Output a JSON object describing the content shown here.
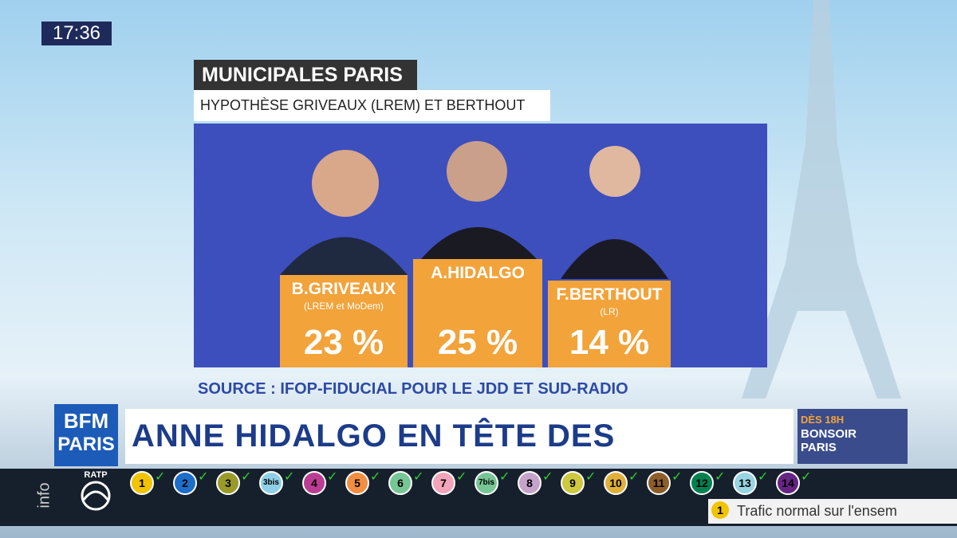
{
  "clock": "17:36",
  "panel": {
    "title": "MUNICIPALES PARIS",
    "subtitle": "HYPOTHÈSE GRIVEAUX (LREM) ET BERTHOUT (LR)",
    "candidates": [
      {
        "name": "B.GRIVEAUX",
        "party": "(LREM et MoDem)",
        "score": "23 %"
      },
      {
        "name": "A.HIDALGO",
        "score": "25 %"
      },
      {
        "name": "F.BERTHOUT",
        "party": "(LR)",
        "score": "14 %"
      }
    ],
    "source": "SOURCE : IFOP-FIDUCIAL POUR LE JDD ET SUD-RADIO"
  },
  "ticker": {
    "logo": "BFM",
    "logo_city": "PARIS",
    "headline": "ANNE HIDALGO EN TÊTE DES SONDAGES",
    "promo_time": "DÈS 18H",
    "promo_show": "BONSOIR PARIS"
  },
  "ratp": {
    "side_label": "info",
    "logo": "RATP",
    "lines": [
      {
        "label": "1",
        "color": "#f2c300"
      },
      {
        "label": "2",
        "color": "#1d6ec9"
      },
      {
        "label": "3",
        "color": "#9a9a2a"
      },
      {
        "label": "3bis",
        "color": "#8fd0e8"
      },
      {
        "label": "4",
        "color": "#bb3d93"
      },
      {
        "label": "5",
        "color": "#f28e42"
      },
      {
        "label": "6",
        "color": "#77c695"
      },
      {
        "label": "7",
        "color": "#f3a4ba"
      },
      {
        "label": "7bis",
        "color": "#77c695"
      },
      {
        "label": "8",
        "color": "#c5a3ca"
      },
      {
        "label": "9",
        "color": "#cdc83f"
      },
      {
        "label": "10",
        "color": "#e0b03a"
      },
      {
        "label": "11",
        "color": "#8d5e2a"
      },
      {
        "label": "12",
        "color": "#00814f"
      },
      {
        "label": "13",
        "color": "#98d4e2"
      },
      {
        "label": "14",
        "color": "#662483"
      }
    ],
    "traffic_line": "1",
    "traffic": "Trafic normal sur l'ensem"
  }
}
